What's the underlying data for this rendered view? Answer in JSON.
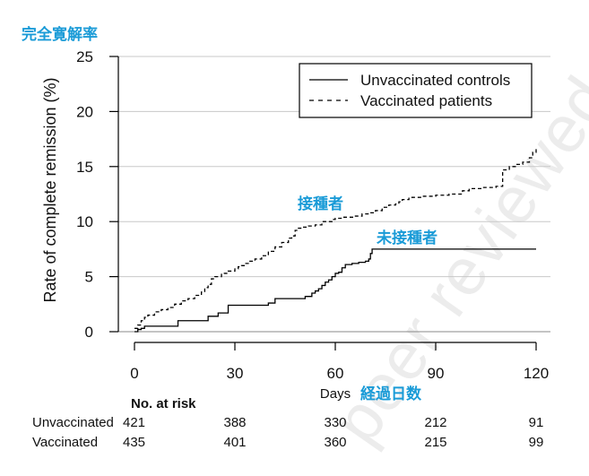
{
  "title_jp": "完全寛解率",
  "watermark": "peer reviewed",
  "chart_data": {
    "type": "line",
    "ylabel": "Rate of complete remission (%)",
    "xlabel": "Days",
    "xlabel_jp": "経過日数",
    "xlim": [
      0,
      120
    ],
    "ylim": [
      0,
      25
    ],
    "x_ticks": [
      0,
      30,
      60,
      90,
      120
    ],
    "y_ticks": [
      0,
      5,
      10,
      15,
      20,
      25
    ],
    "grid": "horizontal",
    "legend_position": "top-right",
    "series": [
      {
        "name": "Unvaccinated controls",
        "style": "solid",
        "color": "#000000",
        "annotation_jp": "未接種者",
        "x": [
          0,
          1,
          2,
          3,
          13,
          22,
          25,
          28,
          40,
          42,
          51,
          53,
          54,
          55,
          56,
          57,
          58,
          59,
          60,
          61,
          62,
          63,
          64,
          65,
          66,
          67,
          68,
          69,
          70,
          70.5,
          71,
          80,
          90,
          100,
          110,
          120
        ],
        "y": [
          0,
          0.2,
          0.3,
          0.5,
          1.0,
          1.4,
          1.7,
          2.4,
          2.6,
          3.0,
          3.2,
          3.5,
          3.7,
          3.9,
          4.2,
          4.5,
          4.7,
          5.0,
          5.3,
          5.4,
          5.8,
          6.1,
          6.1,
          6.2,
          6.2,
          6.3,
          6.3,
          6.4,
          6.6,
          7.1,
          7.5,
          7.5,
          7.5,
          7.5,
          7.5,
          7.5
        ]
      },
      {
        "name": "Vaccinated patients",
        "style": "dashed",
        "color": "#000000",
        "annotation_jp": "接種者",
        "x": [
          0,
          1,
          2,
          3,
          4,
          6,
          8,
          10,
          12,
          14,
          16,
          18,
          20,
          21,
          22,
          23,
          24,
          26,
          28,
          30,
          31,
          32,
          33,
          34,
          36,
          38,
          40,
          42,
          44,
          46,
          47,
          48,
          49,
          50,
          52,
          54,
          56,
          58,
          59,
          60,
          62,
          64,
          66,
          68,
          70,
          72,
          74,
          76,
          78,
          79,
          80,
          82,
          86,
          90,
          94,
          98,
          100,
          104,
          108,
          110,
          112,
          114,
          116,
          118,
          119,
          120
        ],
        "y": [
          0.3,
          0.6,
          1.0,
          1.3,
          1.5,
          1.8,
          2.0,
          2.2,
          2.5,
          2.8,
          3.0,
          3.3,
          3.6,
          4.0,
          4.3,
          4.8,
          5.0,
          5.3,
          5.5,
          5.7,
          5.9,
          6.0,
          6.2,
          6.4,
          6.6,
          6.9,
          7.3,
          7.7,
          8.1,
          8.5,
          8.7,
          9.2,
          9.4,
          9.5,
          9.6,
          9.7,
          10.0,
          10.0,
          10.2,
          10.3,
          10.4,
          10.4,
          10.5,
          10.7,
          10.8,
          11.0,
          11.3,
          11.5,
          11.6,
          11.8,
          12.0,
          12.2,
          12.3,
          12.4,
          12.5,
          12.8,
          13.0,
          13.1,
          13.2,
          14.7,
          15.0,
          15.2,
          15.4,
          15.8,
          16.3,
          16.8
        ]
      }
    ],
    "risk_table": {
      "header": "No. at risk",
      "x": [
        0,
        30,
        60,
        90,
        120
      ],
      "rows": [
        {
          "label": "Unvaccinated",
          "values": [
            "421",
            "388",
            "330",
            "212",
            "91"
          ]
        },
        {
          "label": "Vaccinated",
          "values": [
            "435",
            "401",
            "360",
            "215",
            "99"
          ]
        }
      ]
    }
  }
}
